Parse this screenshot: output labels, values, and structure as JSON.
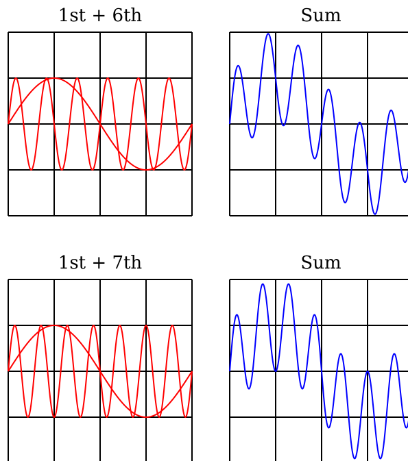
{
  "chart_data": [
    {
      "type": "line",
      "title": "1st + 6th",
      "grid": true,
      "xlim": [
        0,
        1
      ],
      "ylim": [
        -2,
        2
      ],
      "series": [
        {
          "harmonic": 1,
          "amplitude": 1,
          "color": "#ff0000"
        },
        {
          "harmonic": 6,
          "amplitude": 1,
          "color": "#ff0000"
        }
      ]
    },
    {
      "type": "line",
      "title": "Sum",
      "grid": true,
      "xlim": [
        0,
        1
      ],
      "ylim": [
        -2,
        2
      ],
      "series": [
        {
          "components": [
            1,
            6
          ],
          "color": "#0000ff"
        }
      ]
    },
    {
      "type": "line",
      "title": "1st + 7th",
      "grid": true,
      "xlim": [
        0,
        1
      ],
      "ylim": [
        -2,
        2
      ],
      "series": [
        {
          "harmonic": 1,
          "amplitude": 1,
          "color": "#ff0000"
        },
        {
          "harmonic": 7,
          "amplitude": 1,
          "color": "#ff0000"
        }
      ]
    },
    {
      "type": "line",
      "title": "Sum",
      "grid": true,
      "xlim": [
        0,
        1
      ],
      "ylim": [
        -2,
        2
      ],
      "series": [
        {
          "components": [
            1,
            7
          ],
          "color": "#0000ff"
        }
      ]
    }
  ]
}
